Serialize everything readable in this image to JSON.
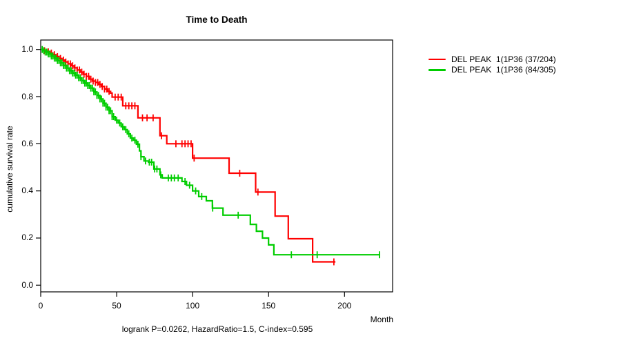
{
  "chart_data": {
    "type": "line",
    "subtype": "kaplan-meier-step",
    "title": "Time to Death",
    "xlabel": "Month",
    "ylabel": "cumulative survival rate",
    "annotation": "logrank P=0.0262, HazardRatio=1.5, C-index=0.595",
    "xlim": [
      0,
      232
    ],
    "ylim": [
      0.0,
      1.0
    ],
    "x_ticks": [
      0,
      50,
      100,
      150,
      200
    ],
    "y_ticks": [
      "0.0",
      "0.2",
      "0.4",
      "0.6",
      "0.8",
      "1.0"
    ],
    "grid": false,
    "legend_position": "right-outside",
    "axis_color": "#000000",
    "series": [
      {
        "name": "DEL PEAK  1(1P36 (37/204)",
        "color": "#ff0000",
        "events_over_n": "37/204",
        "end_time": 194,
        "steps": [
          [
            0,
            1.0
          ],
          [
            2,
            0.995
          ],
          [
            4,
            0.99
          ],
          [
            6,
            0.985
          ],
          [
            8,
            0.978
          ],
          [
            10,
            0.97
          ],
          [
            12,
            0.962
          ],
          [
            14,
            0.955
          ],
          [
            16,
            0.947
          ],
          [
            18,
            0.939
          ],
          [
            20,
            0.931
          ],
          [
            22,
            0.922
          ],
          [
            24,
            0.913
          ],
          [
            26,
            0.904
          ],
          [
            28,
            0.895
          ],
          [
            30,
            0.886
          ],
          [
            32,
            0.874
          ],
          [
            34,
            0.866
          ],
          [
            36,
            0.86
          ],
          [
            38,
            0.852
          ],
          [
            40,
            0.843
          ],
          [
            42,
            0.832
          ],
          [
            44,
            0.822
          ],
          [
            46,
            0.815
          ],
          [
            47,
            0.798
          ],
          [
            54,
            0.761
          ],
          [
            64,
            0.71
          ],
          [
            78.5,
            0.634
          ],
          [
            83,
            0.6
          ],
          [
            100,
            0.539
          ],
          [
            124,
            0.475
          ],
          [
            141.5,
            0.395
          ],
          [
            154.3,
            0.293
          ],
          [
            163,
            0.197
          ],
          [
            179,
            0.099
          ]
        ],
        "censor_times": [
          2.5,
          5,
          7,
          9,
          11,
          13,
          15,
          16.5,
          18,
          19.5,
          21,
          22.5,
          24,
          25.5,
          27,
          28.5,
          30,
          31.5,
          33,
          34.5,
          36,
          37.5,
          39,
          40.5,
          42,
          43.5,
          45,
          49,
          51,
          53,
          56,
          58,
          60,
          62,
          67,
          70,
          74,
          79.5,
          89,
          93,
          95,
          97,
          99,
          101,
          131,
          143,
          193
        ]
      },
      {
        "name": "DEL PEAK  1(1P36 (84/305)",
        "color": "#00cd00",
        "events_over_n": "84/305",
        "end_time": 223.5,
        "steps": [
          [
            0,
            1.0
          ],
          [
            1.5,
            0.995
          ],
          [
            3,
            0.989
          ],
          [
            5,
            0.981
          ],
          [
            7,
            0.972
          ],
          [
            9,
            0.963
          ],
          [
            11,
            0.953
          ],
          [
            13,
            0.943
          ],
          [
            15,
            0.932
          ],
          [
            17,
            0.921
          ],
          [
            19,
            0.91
          ],
          [
            21,
            0.9
          ],
          [
            23,
            0.891
          ],
          [
            25,
            0.88
          ],
          [
            27,
            0.868
          ],
          [
            29,
            0.857
          ],
          [
            31,
            0.847
          ],
          [
            33,
            0.836
          ],
          [
            35,
            0.82
          ],
          [
            37,
            0.805
          ],
          [
            39,
            0.79
          ],
          [
            41,
            0.772
          ],
          [
            43,
            0.755
          ],
          [
            45,
            0.74
          ],
          [
            47,
            0.715
          ],
          [
            49,
            0.7
          ],
          [
            51,
            0.688
          ],
          [
            53,
            0.672
          ],
          [
            55,
            0.66
          ],
          [
            57,
            0.642
          ],
          [
            59,
            0.624
          ],
          [
            61,
            0.615
          ],
          [
            63,
            0.598
          ],
          [
            65,
            0.57
          ],
          [
            66,
            0.545
          ],
          [
            68,
            0.527
          ],
          [
            71,
            0.522
          ],
          [
            74.5,
            0.493
          ],
          [
            78.5,
            0.468
          ],
          [
            80,
            0.455
          ],
          [
            93,
            0.44
          ],
          [
            96,
            0.424
          ],
          [
            100,
            0.4
          ],
          [
            104,
            0.376
          ],
          [
            109,
            0.358
          ],
          [
            113,
            0.327
          ],
          [
            120,
            0.297
          ],
          [
            138,
            0.258
          ],
          [
            142,
            0.229
          ],
          [
            146,
            0.2
          ],
          [
            150,
            0.171
          ],
          [
            153.5,
            0.129
          ]
        ],
        "censor_times": [
          1,
          2,
          3,
          4,
          5,
          6,
          7,
          8,
          9,
          10,
          11,
          12,
          13,
          14,
          15,
          16,
          17,
          18,
          19,
          20,
          21,
          22,
          23,
          24,
          25,
          26,
          27,
          28,
          29,
          30,
          31,
          32,
          33,
          34,
          35,
          36,
          37,
          38,
          39,
          40,
          41,
          42,
          43,
          44,
          45,
          46,
          47,
          48,
          50,
          52,
          54,
          56,
          58,
          60,
          62,
          64,
          66,
          69,
          71.5,
          73,
          75,
          76.5,
          79,
          84,
          86,
          88,
          90.5,
          95,
          98,
          102,
          106,
          113.2,
          130,
          165,
          182,
          223
        ]
      }
    ]
  }
}
